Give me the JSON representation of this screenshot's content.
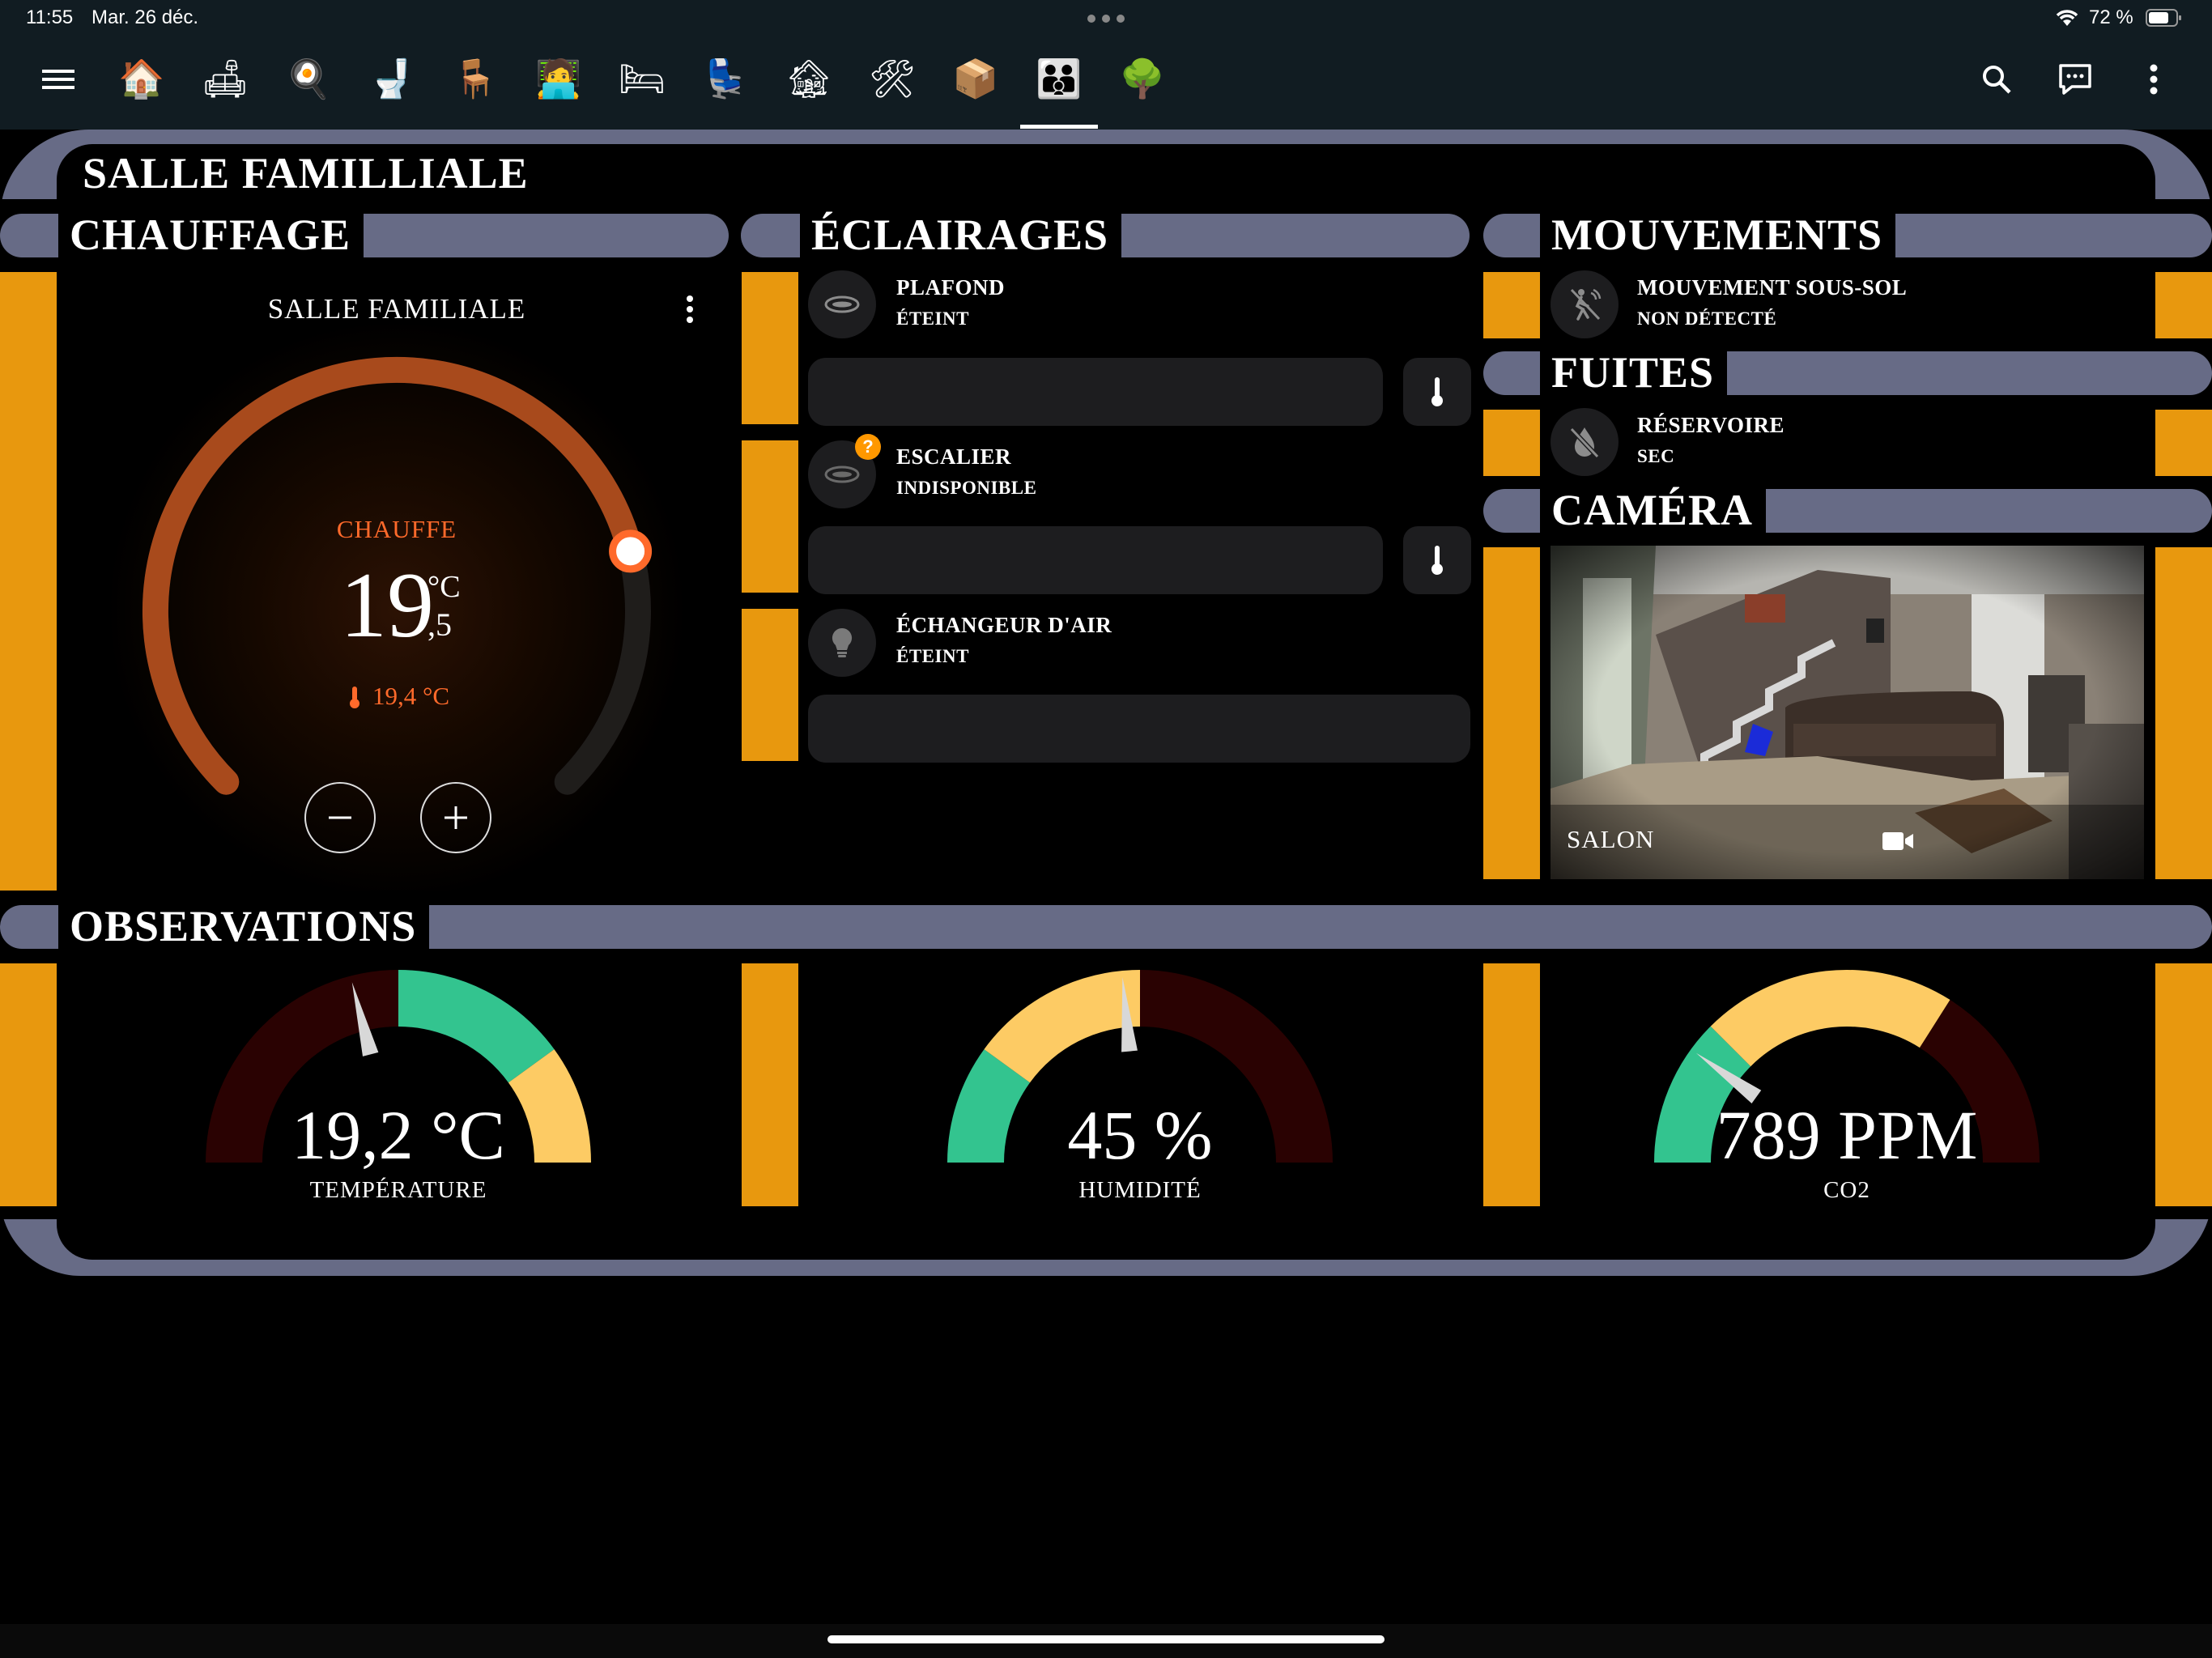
{
  "status": {
    "time": "11:55",
    "date": "Mar. 26 déc.",
    "battery": "72 %"
  },
  "toolbar": {
    "tabs": [
      {
        "icon": "house-icon",
        "glyph": "🏠"
      },
      {
        "icon": "sofa-icon",
        "glyph": "🛋"
      },
      {
        "icon": "stove-icon",
        "glyph": "🍳"
      },
      {
        "icon": "toilet-icon",
        "glyph": "🚽"
      },
      {
        "icon": "table-icon",
        "glyph": "🪑"
      },
      {
        "icon": "desk-worker-icon",
        "glyph": "🧑‍💻"
      },
      {
        "icon": "bed-icon",
        "glyph": "🛏"
      },
      {
        "icon": "armchair-icon",
        "glyph": "💺"
      },
      {
        "icon": "basement-icon",
        "glyph": "🏚"
      },
      {
        "icon": "tools-icon",
        "glyph": "🛠"
      },
      {
        "icon": "stairs-icon",
        "glyph": "📦"
      },
      {
        "icon": "family-icon",
        "glyph": "👪"
      },
      {
        "icon": "tree-icon",
        "glyph": "🌳"
      }
    ],
    "active_tab": 11
  },
  "page": {
    "title": "SALLE FAMILLIALE"
  },
  "heating": {
    "header": "CHAUFFAGE",
    "card_title": "SALLE FAMILIALE",
    "mode": "CHAUFFE",
    "target_int": "19",
    "target_dec": ",5",
    "unit": "°C",
    "current": "19,4 °C",
    "setpoint_fraction": 0.78,
    "colors": {
      "active": "#a84a1c",
      "track": "#1f1d1b",
      "text": "#ff6a2b"
    }
  },
  "lights": {
    "header": "ÉCLAIRAGES",
    "items": [
      {
        "name": "PLAFOND",
        "state": "ÉTEINT"
      },
      {
        "name": "ESCALIER",
        "state": "INDISPONIBLE",
        "badge": "?"
      },
      {
        "name": "ÉCHANGEUR D'AIR",
        "state": "ÉTEINT"
      }
    ]
  },
  "motion": {
    "header": "MOUVEMENTS",
    "name": "MOUVEMENT SOUS-SOL",
    "state": "NON DÉTECTÉ"
  },
  "leaks": {
    "header": "FUITES",
    "name": "RÉSERVOIRE",
    "state": "SEC"
  },
  "camera": {
    "header": "CAMÉRA",
    "name": "SALON"
  },
  "observations": {
    "header": "OBSERVATIONS",
    "gauges": [
      {
        "value": "19,2 °C",
        "label": "TEMPÉRATURE",
        "fraction": 0.42,
        "segments": [
          {
            "from": 0,
            "to": 0.5,
            "color": "#2a0202"
          },
          {
            "from": 0.5,
            "to": 0.8,
            "color": "#33c48f"
          },
          {
            "from": 0.8,
            "to": 1,
            "color": "#fdcb64"
          }
        ]
      },
      {
        "value": "45 %",
        "label": "HUMIDITÉ",
        "fraction": 0.47,
        "segments": [
          {
            "from": 0,
            "to": 0.2,
            "color": "#33c48f"
          },
          {
            "from": 0.2,
            "to": 0.5,
            "color": "#fdcb64"
          },
          {
            "from": 0.5,
            "to": 1,
            "color": "#2a0202"
          }
        ]
      },
      {
        "value": "789 PPM",
        "label": "CO2",
        "fraction": 0.2,
        "segments": [
          {
            "from": 0,
            "to": 0.25,
            "color": "#33c48f"
          },
          {
            "from": 0.25,
            "to": 0.68,
            "color": "#fdcb64"
          },
          {
            "from": 0.68,
            "to": 1,
            "color": "#2a0202"
          }
        ]
      }
    ]
  },
  "colors": {
    "frame": "#676b86",
    "accent": "#e8980e",
    "background": "#000000",
    "bar": "#111c22"
  }
}
